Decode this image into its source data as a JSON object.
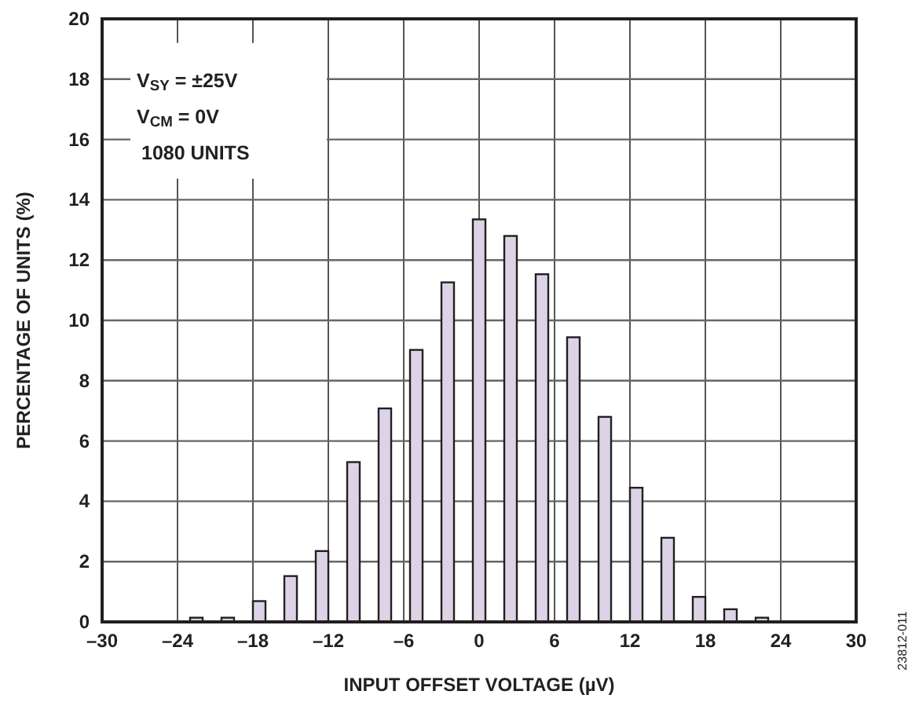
{
  "chart_data": {
    "type": "bar",
    "xlabel": "INPUT OFFSET VOLTAGE (µV)",
    "ylabel": "PERCENTAGE OF UNITS (%)",
    "x": [
      -22.5,
      -20,
      -17.5,
      -15,
      -12.5,
      -10,
      -7.5,
      -5,
      -2.5,
      0,
      2.5,
      5,
      7.5,
      10,
      12.5,
      15,
      17.5,
      20,
      22.5
    ],
    "values": [
      0.14,
      0.14,
      0.69,
      1.52,
      2.35,
      5.3,
      7.08,
      9.02,
      11.26,
      13.35,
      12.8,
      11.53,
      9.44,
      6.8,
      4.45,
      2.79,
      0.83,
      0.42,
      0.14
    ],
    "color": "#dcd3e6",
    "xlim": [
      -30,
      30
    ],
    "xticks": [
      {
        "value": -30,
        "label": "–30"
      },
      {
        "value": -24,
        "label": "–24"
      },
      {
        "value": -18,
        "label": "–18"
      },
      {
        "value": -12,
        "label": "–12"
      },
      {
        "value": -6,
        "label": "–6"
      },
      0,
      6,
      12,
      18,
      24,
      30
    ],
    "ylim": [
      0,
      20
    ],
    "yticks": [
      0,
      2,
      4,
      6,
      8,
      10,
      12,
      14,
      16,
      18,
      20
    ],
    "grid": true,
    "annotations": [
      "V$_{SY}$ = ±25V",
      "V$_{CM}$ = 0V",
      "1080 UNITS",
      "23812-011"
    ]
  }
}
